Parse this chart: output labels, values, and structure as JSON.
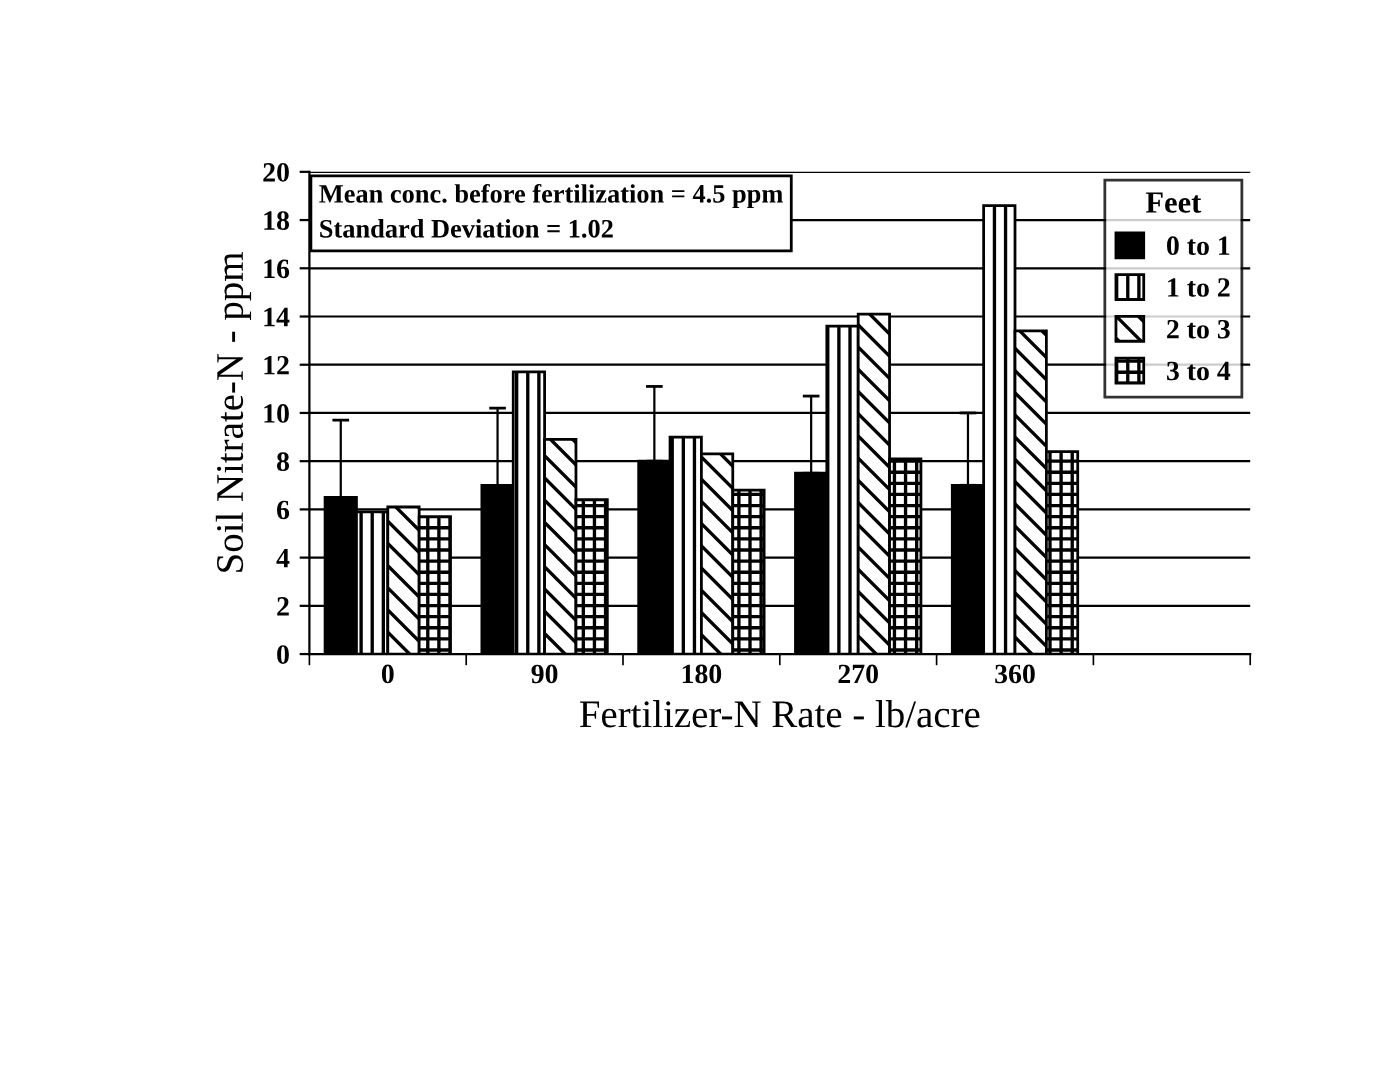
{
  "chart_data": {
    "type": "bar",
    "xlabel": "Fertilizer-N Rate - lb/acre",
    "ylabel": "Soil Nitrate-N - ppm",
    "legend_title": "Feet",
    "annotations": [
      "Mean conc. before fertilization = 4.5 ppm",
      "Standard Deviation = 1.02"
    ],
    "categories": [
      "0",
      "90",
      "180",
      "270",
      "360",
      null
    ],
    "series": [
      {
        "name": "0 to 1",
        "color": "#000000",
        "values": [
          6.5,
          7.0,
          8.0,
          7.5,
          7.0,
          null
        ],
        "errors": [
          [
            6.5,
            9.7
          ],
          [
            7.0,
            10.2
          ],
          [
            8.0,
            11.1
          ],
          [
            7.5,
            10.7
          ],
          [
            7.0,
            10.0
          ],
          null
        ]
      },
      {
        "name": "1 to 2",
        "color": "#000000",
        "values": [
          5.9,
          11.7,
          9.0,
          13.6,
          18.6,
          null
        ]
      },
      {
        "name": "2 to 3",
        "color": "#000000",
        "values": [
          6.1,
          8.9,
          8.3,
          14.1,
          13.4,
          null
        ]
      },
      {
        "name": "3 to 4",
        "color": "#000000",
        "values": [
          5.7,
          6.4,
          6.8,
          8.1,
          8.4,
          null
        ]
      }
    ],
    "ylim": [
      0,
      20
    ],
    "yticks": [
      0,
      2,
      4,
      6,
      8,
      10,
      12,
      14,
      16,
      18,
      20
    ],
    "grid": "y",
    "legend": "top right"
  }
}
